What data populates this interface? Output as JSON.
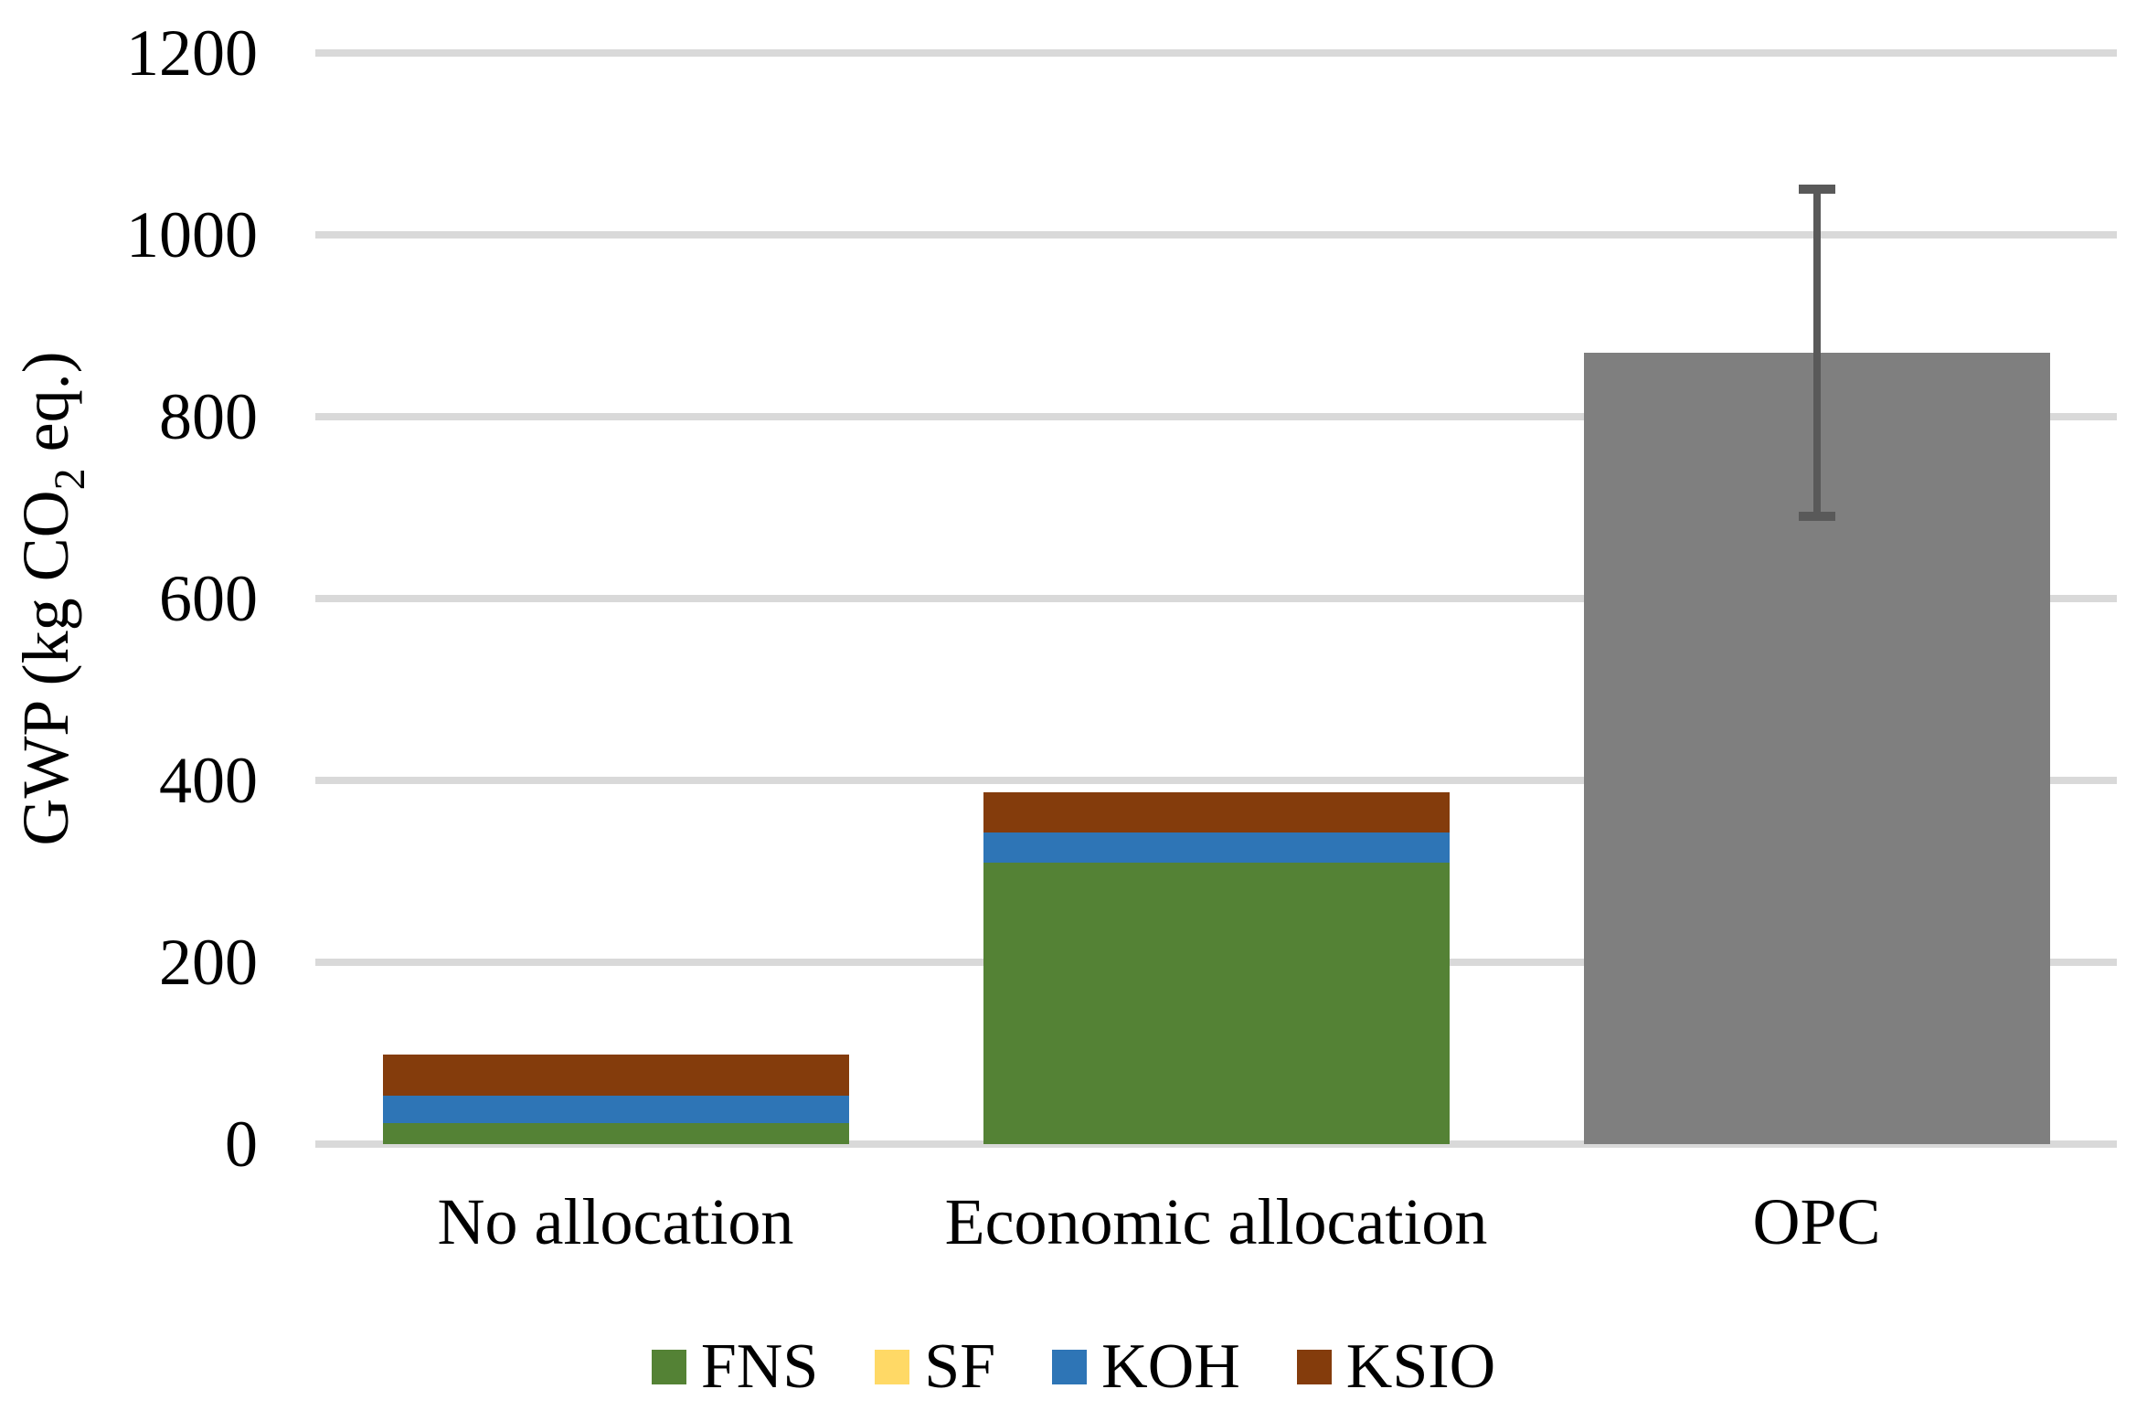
{
  "figure": {
    "background": "#FFFFFF",
    "text_color": "#000000",
    "gridline_color": "#D9D9D9",
    "error_bar_color": "#595959"
  },
  "y_axis": {
    "title_text": "GWP (kg CO2 eq.)",
    "title_prefix": "GWP (kg CO",
    "title_sub": "2",
    "title_suffix": " eq.)"
  },
  "chart_data": {
    "type": "bar",
    "stacked": true,
    "grid": "horizontal",
    "legend_position": "bottom",
    "title": "",
    "xlabel": "",
    "ylabel": "GWP (kg CO2 eq.)",
    "ylim": [
      0,
      1200
    ],
    "ytick_step": 200,
    "yticks": [
      0,
      200,
      400,
      600,
      800,
      1000,
      1200
    ],
    "categories": [
      "No allocation",
      "Economic allocation",
      "OPC"
    ],
    "series": [
      {
        "name": "FNS",
        "color": "#548235",
        "in_legend": true,
        "values": [
          23,
          310,
          0
        ]
      },
      {
        "name": "SF",
        "color": "#FFD966",
        "in_legend": true,
        "values": [
          0,
          0,
          0
        ]
      },
      {
        "name": "KOH",
        "color": "#2E75B6",
        "in_legend": true,
        "values": [
          30,
          33,
          0
        ]
      },
      {
        "name": "KSIO",
        "color": "#843C0C",
        "in_legend": true,
        "values": [
          46,
          44,
          0
        ]
      },
      {
        "name": "OPC",
        "color": "#7F7F7F",
        "in_legend": false,
        "values": [
          0,
          0,
          870
        ]
      }
    ],
    "totals": [
      99,
      387,
      870
    ],
    "error_bar": {
      "category": "OPC",
      "center": 870,
      "low": 690,
      "high": 1050
    }
  }
}
